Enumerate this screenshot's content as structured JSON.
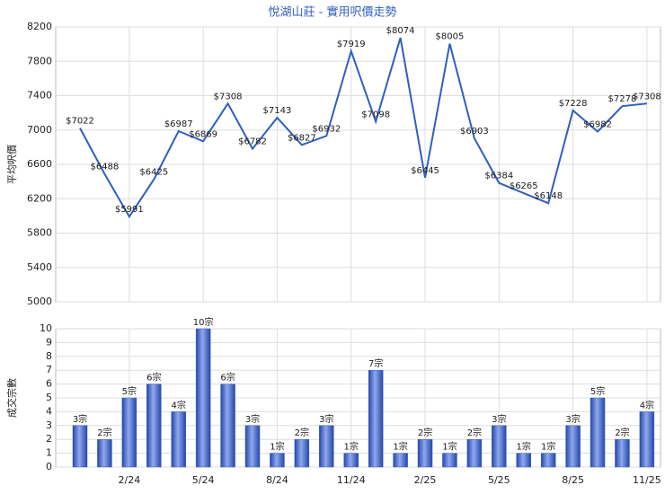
{
  "chart_data": [
    {
      "type": "line",
      "title": "悅湖山莊 - 實用呎價走勢",
      "ylabel": "平均呎價",
      "color": "#2f5fbf",
      "values": [
        7022,
        6488,
        5991,
        6425,
        6987,
        6869,
        7308,
        6782,
        7143,
        6827,
        6932,
        7919,
        7098,
        8074,
        6445,
        8005,
        6903,
        6384,
        6265,
        6148,
        7228,
        6982,
        7278,
        7308
      ],
      "value_labels": [
        "$7022",
        "$6488",
        "$5991",
        "$6425",
        "$6987",
        "$6869",
        "$7308",
        "$6782",
        "$7143",
        "$6827",
        "$6932",
        "$7919",
        "$7098",
        "$8074",
        "$6445",
        "$8005",
        "$6903",
        "$6384",
        "$6265",
        "$6148",
        "$7228",
        "$6982",
        "$7278",
        "$7308"
      ],
      "ylim": [
        5000,
        8200
      ],
      "yticks": [
        5000,
        5400,
        5800,
        6200,
        6600,
        7000,
        7400,
        7800,
        8200
      ],
      "grid": true
    },
    {
      "type": "bar",
      "ylabel": "成交宗數",
      "color": "#3a5fc8",
      "categories": [
        null,
        null,
        "2/24",
        null,
        null,
        "5/24",
        null,
        null,
        "8/24",
        null,
        null,
        "11/24",
        null,
        null,
        "2/25",
        null,
        null,
        "5/25",
        null,
        null,
        "8/25",
        null,
        null,
        "11/25"
      ],
      "values": [
        3,
        2,
        5,
        6,
        4,
        10,
        6,
        3,
        1,
        2,
        3,
        1,
        7,
        1,
        2,
        1,
        2,
        3,
        1,
        1,
        3,
        5,
        2,
        4
      ],
      "value_labels": [
        "3宗",
        "2宗",
        "5宗",
        "6宗",
        "4宗",
        "10宗",
        "6宗",
        "3宗",
        "1宗",
        "2宗",
        "3宗",
        "1宗",
        "7宗",
        "1宗",
        "2宗",
        "1宗",
        "2宗",
        "3宗",
        "1宗",
        "1宗",
        "3宗",
        "5宗",
        "2宗",
        "4宗"
      ],
      "ylim": [
        0,
        10
      ],
      "yticks": [
        0,
        1,
        2,
        3,
        4,
        5,
        6,
        7,
        8,
        9,
        10
      ],
      "grid": true
    }
  ]
}
